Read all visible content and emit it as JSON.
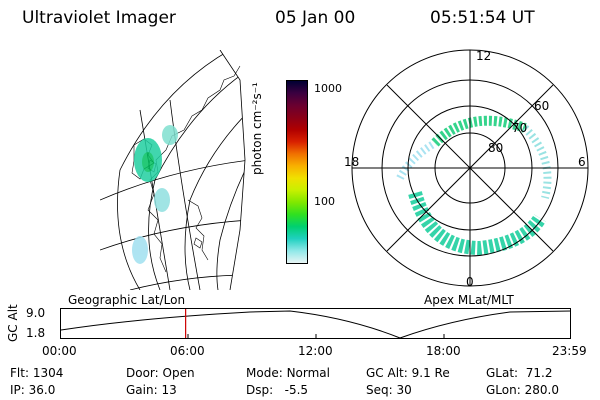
{
  "header": {
    "instrument": "Ultraviolet Imager",
    "date": "05 Jan 00",
    "time": "05:51:54 UT"
  },
  "colorbar": {
    "label": "photon cm⁻²s⁻¹",
    "ticks": [
      "1000",
      "100"
    ],
    "colors": [
      "#000033",
      "#3b0040",
      "#6a0030",
      "#8a0018",
      "#b00000",
      "#d82000",
      "#f07000",
      "#f8b000",
      "#f0e000",
      "#c8f000",
      "#80e800",
      "#30e020",
      "#00d070",
      "#20d0c0",
      "#90e8e8",
      "#e8f4f4"
    ]
  },
  "globe": {
    "label": "Geographic Lat/Lon"
  },
  "polar": {
    "label": "Apex MLat/MLT",
    "mlt_labels": {
      "top": "12",
      "left": "18",
      "right": "6",
      "bottom": "0"
    },
    "lat_labels": [
      "60",
      "70",
      "80"
    ]
  },
  "altitude": {
    "ylabel": "GC Alt",
    "yticks": [
      "9.0",
      "1.8"
    ],
    "xticks": [
      "00:00",
      "06:00",
      "12:00",
      "18:00",
      "23:59"
    ],
    "current_marker_hours": 5.865,
    "line_color": "#cc0000"
  },
  "status": {
    "flt_label": "Flt:",
    "flt_value": "1304",
    "ip_label": "IP:",
    "ip_value": "36.0",
    "door_label": "Door:",
    "door_value": "Open",
    "gain_label": "Gain:",
    "gain_value": "13",
    "mode_label": "Mode:",
    "mode_value": "Normal",
    "dsp_label": "Dsp:",
    "dsp_value": "-5.5",
    "gcalt_label": "GC Alt:",
    "gcalt_value": "9.1 Re",
    "seq_label": "Seq:",
    "seq_value": "30",
    "glat_label": "GLat:",
    "glat_value": "71.2",
    "glon_label": "GLon:",
    "glon_value": "280.0"
  }
}
